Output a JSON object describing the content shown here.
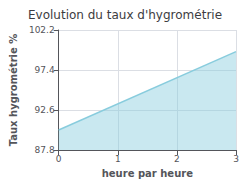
{
  "chart_data": {
    "type": "area",
    "title": "Evolution du taux d'hygrométrie",
    "xlabel": "heure par heure",
    "ylabel": "Taux hygrométrie %",
    "x": [
      0,
      3
    ],
    "values": [
      90.2,
      99.6
    ],
    "color": "#88ccdd",
    "xlim": [
      0,
      3
    ],
    "ylim": [
      87.8,
      102.2
    ],
    "xticks": [
      0,
      1,
      2,
      3
    ],
    "yticks": [
      87.8,
      92.6,
      97.4,
      102.2
    ],
    "grid": true
  }
}
